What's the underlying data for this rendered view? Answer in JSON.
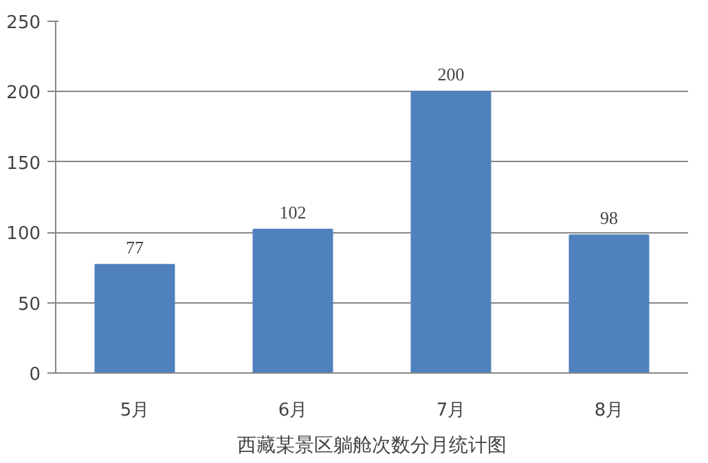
{
  "chart_data": {
    "type": "bar",
    "title": "西藏某景区躺舱次数分月统计图",
    "categories": [
      "5月",
      "6月",
      "7月",
      "8月"
    ],
    "values": [
      77,
      102,
      200,
      98
    ],
    "color": "#4f81bd",
    "ylim": [
      0,
      250
    ],
    "yticks": [
      0,
      50,
      100,
      150,
      200,
      250
    ],
    "grid": "y",
    "data_labels": true
  }
}
